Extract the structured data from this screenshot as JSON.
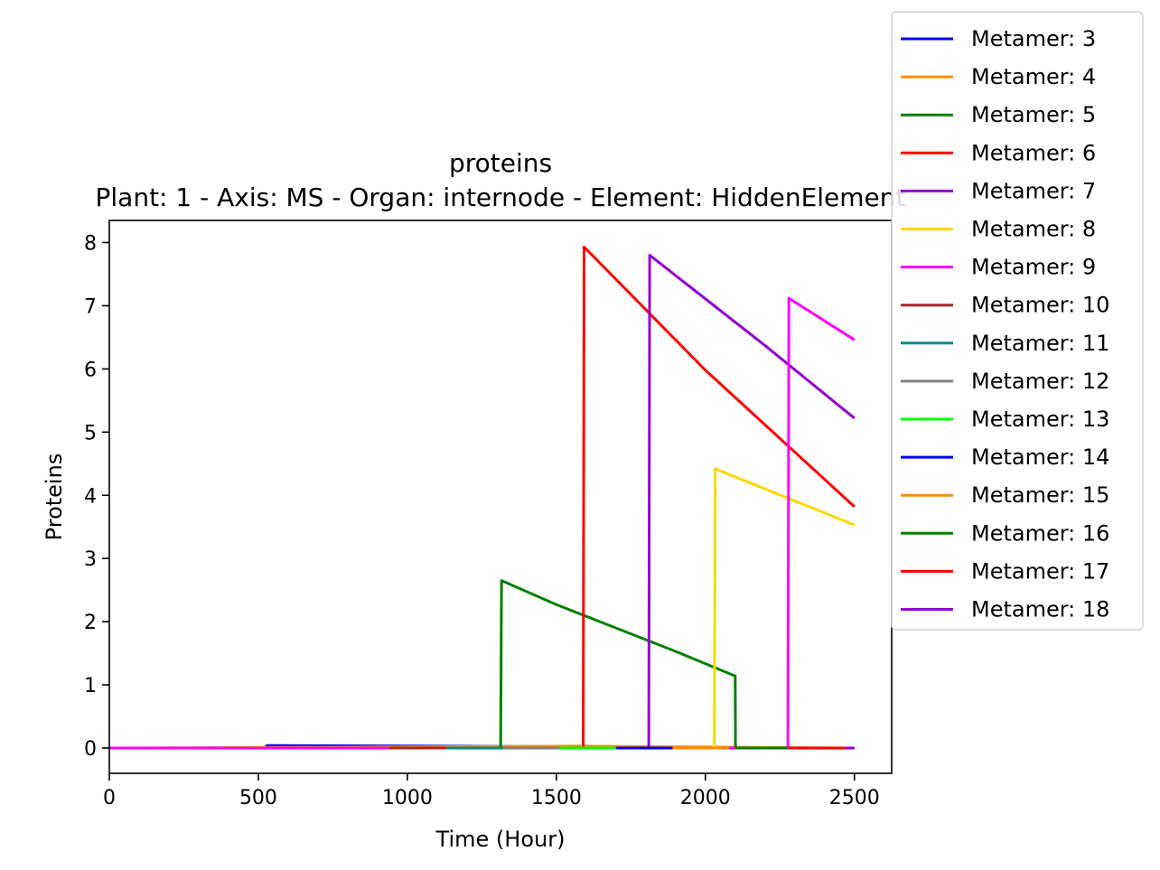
{
  "chart_data": {
    "type": "line",
    "title": "proteins",
    "subtitle": "Plant: 1 - Axis: MS - Organ: internode - Element: HiddenElement",
    "xlabel": "Time (Hour)",
    "ylabel": "Proteins",
    "xlim": [
      0,
      2625
    ],
    "ylim": [
      -0.4,
      8.35
    ],
    "xticks": [
      0,
      500,
      1000,
      1500,
      2000,
      2500
    ],
    "yticks": [
      0,
      1,
      2,
      3,
      4,
      5,
      6,
      7,
      8
    ],
    "grid": false,
    "legend_position": "upper-right-outside",
    "series": [
      {
        "name": "Metamer: 3",
        "color": "#0000ff",
        "x": [
          0,
          520,
          530,
          1700,
          1890,
          2500
        ],
        "y": [
          0,
          0,
          0.04,
          0.02,
          0,
          0
        ]
      },
      {
        "name": "Metamer: 4",
        "color": "#ff8c00",
        "x": [
          0,
          1570,
          2500
        ],
        "y": [
          0,
          0.03,
          0
        ]
      },
      {
        "name": "Metamer: 5",
        "color": "#008000",
        "x": [
          0,
          1313,
          1316,
          1500,
          1700,
          1900,
          2100,
          2101,
          2500
        ],
        "y": [
          0,
          0,
          2.65,
          2.27,
          1.9,
          1.53,
          1.14,
          0,
          0
        ]
      },
      {
        "name": "Metamer: 6",
        "color": "#ff0000",
        "x": [
          0,
          1590,
          1593,
          2000,
          2500
        ],
        "y": [
          0,
          0,
          7.93,
          5.98,
          3.82
        ]
      },
      {
        "name": "Metamer: 7",
        "color": "#9400d3",
        "x": [
          0,
          1810,
          1813,
          2200,
          2500
        ],
        "y": [
          0,
          0,
          7.8,
          6.37,
          5.22
        ]
      },
      {
        "name": "Metamer: 8",
        "color": "#ffd700",
        "x": [
          0,
          2030,
          2033,
          2500
        ],
        "y": [
          0,
          0,
          4.42,
          3.53
        ]
      },
      {
        "name": "Metamer: 9",
        "color": "#ff00ff",
        "x": [
          0,
          2277,
          2280,
          2500
        ],
        "y": [
          0,
          0,
          7.12,
          6.46
        ]
      },
      {
        "name": "Metamer: 10",
        "color": "#a52a2a",
        "x": [
          940,
          1130
        ],
        "y": [
          0,
          0
        ]
      },
      {
        "name": "Metamer: 11",
        "color": "#008b8b",
        "x": [
          1130,
          1320
        ],
        "y": [
          0,
          0
        ]
      },
      {
        "name": "Metamer: 12",
        "color": "#808080",
        "x": [
          1320,
          1510
        ],
        "y": [
          0,
          0
        ]
      },
      {
        "name": "Metamer: 13",
        "color": "#00ff00",
        "x": [
          1510,
          1700
        ],
        "y": [
          0,
          0
        ]
      },
      {
        "name": "Metamer: 14",
        "color": "#0000ff",
        "x": [
          1700,
          1890
        ],
        "y": [
          0,
          0
        ]
      },
      {
        "name": "Metamer: 15",
        "color": "#ff8c00",
        "x": [
          1890,
          2080
        ],
        "y": [
          0,
          0
        ]
      },
      {
        "name": "Metamer: 16",
        "color": "#008000",
        "x": [
          2100,
          2277
        ],
        "y": [
          0,
          0
        ]
      },
      {
        "name": "Metamer: 17",
        "color": "#ff0000",
        "x": [
          2280,
          2470
        ],
        "y": [
          0,
          0
        ]
      },
      {
        "name": "Metamer: 18",
        "color": "#9400d3",
        "x": [
          2470,
          2500
        ],
        "y": [
          0,
          0
        ]
      }
    ],
    "baseline_segments": [
      {
        "color": "#008000",
        "x": [
          0,
          182
        ]
      },
      {
        "color": "#ff0000",
        "x": [
          182,
          370
        ]
      },
      {
        "color": "#9400d3",
        "x": [
          370,
          560
        ]
      },
      {
        "color": "#ffd700",
        "x": [
          560,
          750
        ]
      },
      {
        "color": "#ff00ff",
        "x": [
          750,
          940
        ]
      }
    ]
  }
}
